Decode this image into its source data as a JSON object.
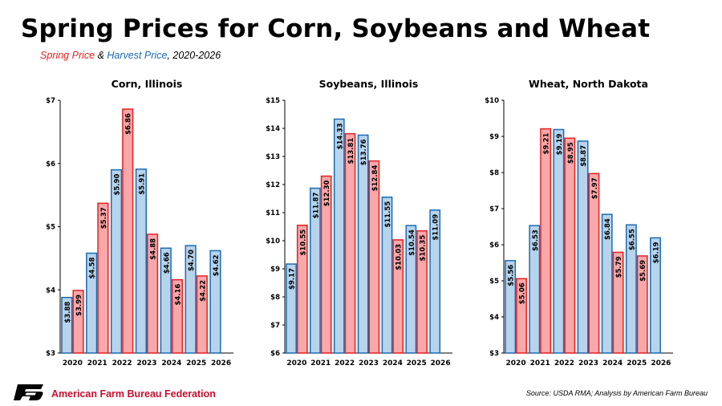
{
  "header": {
    "title": "Spring Prices for Corn, Soybeans and Wheat",
    "subtitle_spring": "Spring Price",
    "subtitle_amp": " & ",
    "subtitle_harvest": "Harvest Price",
    "subtitle_years": ", 2020-2026"
  },
  "colors": {
    "spring_fill": "#f9a8a9",
    "spring_stroke": "#e51f22",
    "harvest_fill": "#b7d4ec",
    "harvest_stroke": "#1c6ab2",
    "axis": "#000000",
    "title": "#000000",
    "brand_red": "#c8102e"
  },
  "footer": {
    "organization": "American Farm Bureau Federation",
    "source": "Source: USDA RMA; Analysis by American Farm Bureau"
  },
  "chart_data": [
    {
      "type": "bar",
      "title": "Corn, Illinois",
      "categories": [
        "2020",
        "2021",
        "2022",
        "2023",
        "2024",
        "2025",
        "2026"
      ],
      "ylim": [
        3,
        7
      ],
      "yticks": [
        3,
        4,
        5,
        6,
        7
      ],
      "ytick_labels": [
        "$3",
        "$4",
        "$5",
        "$6",
        "$7"
      ],
      "series": [
        {
          "key": "harvest",
          "values": [
            3.88,
            4.58,
            5.9,
            5.91,
            4.66,
            4.7,
            4.62
          ],
          "labels": [
            "$3.88",
            "$4.58",
            "$5.90",
            "$5.91",
            "$4.66",
            "$4.70",
            "$4.62"
          ]
        },
        {
          "key": "spring",
          "values": [
            3.99,
            5.37,
            6.86,
            4.88,
            4.16,
            4.22,
            null
          ],
          "labels": [
            "$3.99",
            "$5.37",
            "$6.86",
            "$4.88",
            "$4.16",
            "$4.22",
            null
          ]
        }
      ]
    },
    {
      "type": "bar",
      "title": "Soybeans, Illinois",
      "categories": [
        "2020",
        "2021",
        "2022",
        "2023",
        "2024",
        "2025",
        "2026"
      ],
      "ylim": [
        6,
        15
      ],
      "yticks": [
        6,
        7,
        8,
        9,
        10,
        11,
        12,
        13,
        14,
        15
      ],
      "ytick_labels": [
        "$6",
        "$7",
        "$8",
        "$9",
        "$10",
        "$11",
        "$12",
        "$13",
        "$14",
        "$15"
      ],
      "series": [
        {
          "key": "harvest",
          "values": [
            9.17,
            11.87,
            14.33,
            13.76,
            11.55,
            10.54,
            11.09
          ],
          "labels": [
            "$9.17",
            "$11.87",
            "$14.33",
            "$13.76",
            "$11.55",
            "$10.54",
            "$11.09"
          ]
        },
        {
          "key": "spring",
          "values": [
            10.55,
            12.3,
            13.81,
            12.84,
            10.03,
            10.35,
            null
          ],
          "labels": [
            "$10.55",
            "$12.30",
            "$13.81",
            "$12.84",
            "$10.03",
            "$10.35",
            null
          ]
        }
      ]
    },
    {
      "type": "bar",
      "title": "Wheat, North Dakota",
      "categories": [
        "2020",
        "2021",
        "2022",
        "2023",
        "2024",
        "2025",
        "2026"
      ],
      "ylim": [
        3,
        10
      ],
      "yticks": [
        3,
        4,
        5,
        6,
        7,
        8,
        9,
        10
      ],
      "ytick_labels": [
        "$3",
        "$4",
        "$5",
        "$6",
        "$7",
        "$8",
        "$9",
        "$10"
      ],
      "series": [
        {
          "key": "harvest",
          "values": [
            5.56,
            6.53,
            9.19,
            8.87,
            6.84,
            6.55,
            6.19
          ],
          "labels": [
            "$5.56",
            "$6.53",
            "$9.19",
            "$8.87",
            "$6.84",
            "$6.55",
            "$6.19"
          ]
        },
        {
          "key": "spring",
          "values": [
            5.06,
            9.21,
            8.95,
            7.97,
            5.79,
            5.69,
            null
          ],
          "labels": [
            "$5.06",
            "$9.21",
            "$8.95",
            "$7.97",
            "$5.79",
            "$5.69",
            null
          ]
        }
      ]
    }
  ]
}
